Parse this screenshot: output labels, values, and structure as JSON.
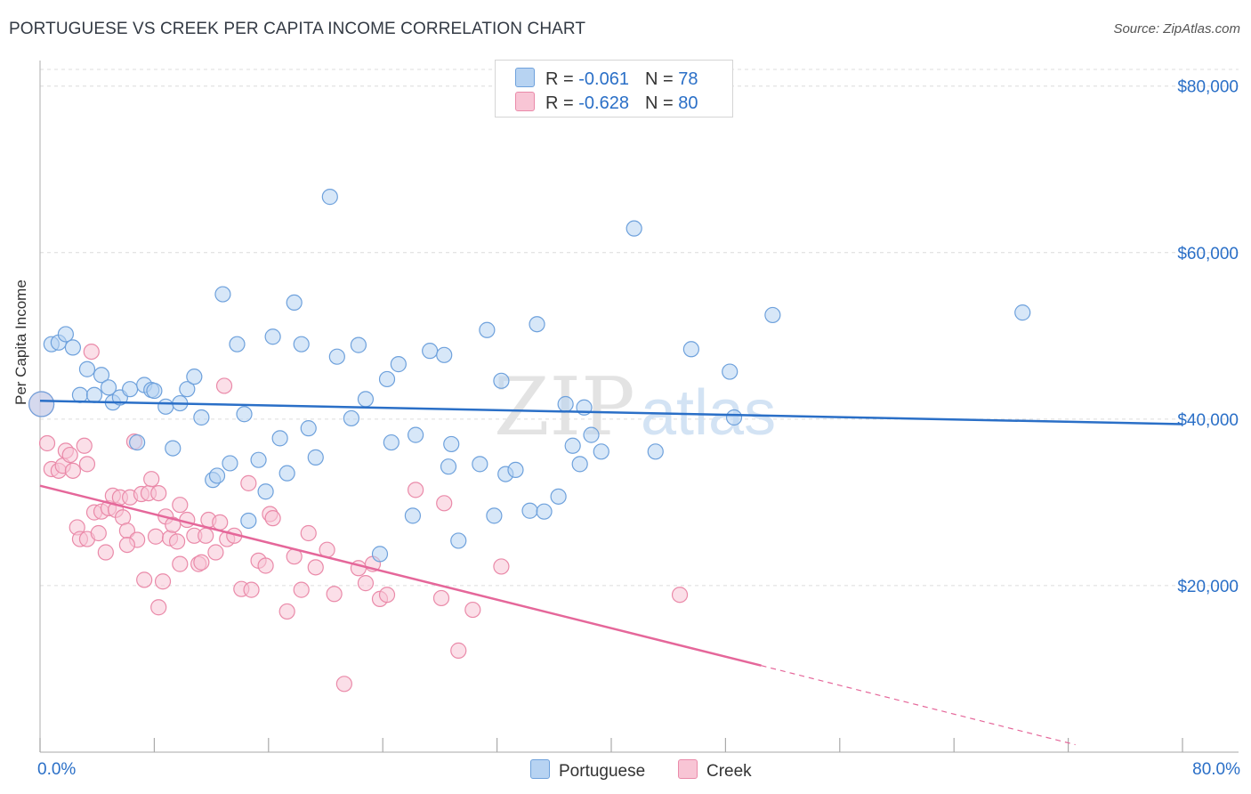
{
  "header": {
    "title": "PORTUGUESE VS CREEK PER CAPITA INCOME CORRELATION CHART",
    "source": "Source: ZipAtlas.com"
  },
  "watermark": {
    "text_zip": "ZIP",
    "text_atlas": "atlas"
  },
  "legend": {
    "rows": [
      {
        "r_label": "R =",
        "r_value": "-0.061",
        "n_label": "N =",
        "n_value": "78"
      },
      {
        "r_label": "R =",
        "r_value": "-0.628",
        "n_label": "N =",
        "n_value": "80"
      }
    ]
  },
  "colors": {
    "portuguese_fill": "#b7d3f2",
    "portuguese_stroke": "#6ea1dc",
    "portuguese_line": "#2a6fc7",
    "creek_fill": "#f8c5d5",
    "creek_stroke": "#ea8aa9",
    "creek_line": "#e5679a",
    "tick_label": "#2a6fc7"
  },
  "chart_data": {
    "type": "scatter",
    "title": "PORTUGUESE VS CREEK PER CAPITA INCOME CORRELATION CHART",
    "ylabel": "Per Capita Income",
    "xlabel": "",
    "xlim": [
      0,
      80
    ],
    "ylim": [
      0,
      82000
    ],
    "x_tick_labels": [
      "0.0%",
      "80.0%"
    ],
    "y_ticks": [
      20000,
      40000,
      60000,
      80000
    ],
    "y_tick_labels": [
      "$20,000",
      "$40,000",
      "$60,000",
      "$80,000"
    ],
    "grid": true,
    "legend_placement": "top-center",
    "series": [
      {
        "name": "Portuguese",
        "trend": {
          "x0": 0,
          "y0": 42200,
          "x1": 80,
          "y1": 39400
        },
        "points": [
          [
            0.1,
            41800
          ],
          [
            0.8,
            49000
          ],
          [
            1.3,
            49200
          ],
          [
            1.8,
            50200
          ],
          [
            2.3,
            48600
          ],
          [
            2.8,
            42900
          ],
          [
            3.3,
            46000
          ],
          [
            3.8,
            42900
          ],
          [
            4.3,
            45300
          ],
          [
            4.8,
            43800
          ],
          [
            5.1,
            42000
          ],
          [
            5.6,
            42600
          ],
          [
            6.3,
            43600
          ],
          [
            6.8,
            37200
          ],
          [
            7.3,
            44100
          ],
          [
            7.8,
            43500
          ],
          [
            8.0,
            43400
          ],
          [
            8.8,
            41500
          ],
          [
            9.3,
            36500
          ],
          [
            9.8,
            41900
          ],
          [
            10.3,
            43600
          ],
          [
            10.8,
            45100
          ],
          [
            11.3,
            40200
          ],
          [
            12.1,
            32700
          ],
          [
            12.4,
            33200
          ],
          [
            12.8,
            55000
          ],
          [
            13.3,
            34700
          ],
          [
            13.8,
            49000
          ],
          [
            14.3,
            40600
          ],
          [
            14.6,
            27800
          ],
          [
            15.3,
            35100
          ],
          [
            15.8,
            31300
          ],
          [
            16.3,
            49900
          ],
          [
            16.8,
            37700
          ],
          [
            17.3,
            33500
          ],
          [
            17.8,
            54000
          ],
          [
            18.3,
            49000
          ],
          [
            18.8,
            38900
          ],
          [
            19.3,
            35400
          ],
          [
            20.3,
            66700
          ],
          [
            20.8,
            47500
          ],
          [
            21.8,
            40100
          ],
          [
            22.3,
            48900
          ],
          [
            22.8,
            42400
          ],
          [
            24.3,
            44800
          ],
          [
            24.6,
            37200
          ],
          [
            25.1,
            46600
          ],
          [
            26.1,
            28400
          ],
          [
            26.3,
            38100
          ],
          [
            27.3,
            48200
          ],
          [
            28.3,
            47700
          ],
          [
            28.6,
            34300
          ],
          [
            28.8,
            37000
          ],
          [
            29.3,
            25400
          ],
          [
            30.8,
            34600
          ],
          [
            31.3,
            50700
          ],
          [
            31.8,
            28400
          ],
          [
            32.3,
            44600
          ],
          [
            32.6,
            33400
          ],
          [
            33.3,
            33900
          ],
          [
            34.3,
            29000
          ],
          [
            34.8,
            51400
          ],
          [
            35.3,
            28900
          ],
          [
            36.3,
            30700
          ],
          [
            36.8,
            41800
          ],
          [
            37.3,
            36800
          ],
          [
            37.8,
            34600
          ],
          [
            38.1,
            41400
          ],
          [
            38.6,
            38100
          ],
          [
            39.3,
            36100
          ],
          [
            41.6,
            62900
          ],
          [
            43.1,
            36100
          ],
          [
            45.6,
            48400
          ],
          [
            48.3,
            45700
          ],
          [
            48.6,
            40200
          ],
          [
            51.3,
            52500
          ],
          [
            23.8,
            23800
          ],
          [
            68.8,
            52800
          ]
        ]
      },
      {
        "name": "Creek",
        "trend": {
          "x0": 0,
          "y0": 32000,
          "x1": 50.5,
          "y1": 10400
        },
        "trend_dashed": {
          "x0": 50.5,
          "y0": 10400,
          "x1": 72.5,
          "y1": 900
        },
        "points": [
          [
            0.1,
            41800
          ],
          [
            0.5,
            37100
          ],
          [
            0.8,
            34000
          ],
          [
            1.3,
            33800
          ],
          [
            1.6,
            34400
          ],
          [
            1.8,
            36200
          ],
          [
            2.1,
            35700
          ],
          [
            2.3,
            33800
          ],
          [
            2.6,
            27000
          ],
          [
            2.8,
            25600
          ],
          [
            3.1,
            36800
          ],
          [
            3.3,
            25600
          ],
          [
            3.6,
            48100
          ],
          [
            3.8,
            28800
          ],
          [
            4.1,
            26300
          ],
          [
            4.3,
            28900
          ],
          [
            4.6,
            24000
          ],
          [
            4.8,
            29300
          ],
          [
            5.1,
            30800
          ],
          [
            5.3,
            29100
          ],
          [
            5.6,
            30600
          ],
          [
            5.8,
            28200
          ],
          [
            6.1,
            26600
          ],
          [
            6.3,
            30600
          ],
          [
            6.6,
            37300
          ],
          [
            6.8,
            25500
          ],
          [
            7.1,
            31000
          ],
          [
            7.3,
            20700
          ],
          [
            7.6,
            31100
          ],
          [
            7.8,
            32800
          ],
          [
            8.1,
            25900
          ],
          [
            8.3,
            31100
          ],
          [
            8.6,
            20500
          ],
          [
            8.8,
            28300
          ],
          [
            9.1,
            25700
          ],
          [
            9.3,
            27300
          ],
          [
            9.6,
            25300
          ],
          [
            9.8,
            29700
          ],
          [
            10.3,
            27900
          ],
          [
            10.8,
            26000
          ],
          [
            11.1,
            22600
          ],
          [
            11.3,
            22800
          ],
          [
            11.6,
            26000
          ],
          [
            11.8,
            27900
          ],
          [
            12.3,
            24000
          ],
          [
            12.6,
            27600
          ],
          [
            13.1,
            25600
          ],
          [
            13.6,
            26000
          ],
          [
            14.1,
            19600
          ],
          [
            14.6,
            32300
          ],
          [
            14.8,
            19500
          ],
          [
            15.3,
            23000
          ],
          [
            15.8,
            22400
          ],
          [
            16.1,
            28600
          ],
          [
            16.3,
            28100
          ],
          [
            17.3,
            16900
          ],
          [
            17.8,
            23500
          ],
          [
            18.3,
            19500
          ],
          [
            18.8,
            26300
          ],
          [
            19.3,
            22200
          ],
          [
            20.1,
            24300
          ],
          [
            20.6,
            19000
          ],
          [
            21.3,
            8200
          ],
          [
            22.3,
            22100
          ],
          [
            22.8,
            20300
          ],
          [
            23.3,
            22600
          ],
          [
            23.8,
            18400
          ],
          [
            24.3,
            18900
          ],
          [
            26.3,
            31500
          ],
          [
            28.1,
            18500
          ],
          [
            28.3,
            29900
          ],
          [
            29.3,
            12200
          ],
          [
            30.3,
            17100
          ],
          [
            32.3,
            22300
          ],
          [
            44.8,
            18900
          ],
          [
            9.8,
            22600
          ],
          [
            8.3,
            17400
          ],
          [
            6.1,
            24900
          ],
          [
            12.9,
            44000
          ],
          [
            3.3,
            34600
          ]
        ]
      }
    ]
  }
}
